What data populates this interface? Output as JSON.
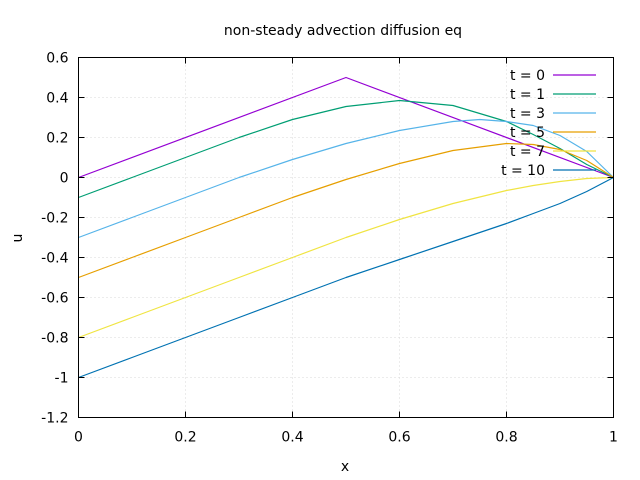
{
  "chart_data": {
    "type": "line",
    "title": "non-steady advection diffusion eq",
    "xlabel": "x",
    "ylabel": "u",
    "xlim": [
      0,
      1
    ],
    "ylim": [
      -1.2,
      0.6
    ],
    "xticks": [
      0,
      0.2,
      0.4,
      0.6,
      0.8,
      1
    ],
    "xtick_labels": [
      "0",
      "0.2",
      "0.4",
      "0.6",
      "0.8",
      "1"
    ],
    "yticks": [
      -1.2,
      -1,
      -0.8,
      -0.6,
      -0.4,
      -0.2,
      0,
      0.2,
      0.4,
      0.6
    ],
    "ytick_labels": [
      "-1.2",
      "-1",
      "-0.8",
      "-0.6",
      "-0.4",
      "-0.2",
      "0",
      "0.2",
      "0.4",
      "0.6"
    ],
    "grid": true,
    "legend_position": "top-right",
    "series": [
      {
        "name": "t = 0",
        "color": "#9400d3",
        "x": [
          0,
          0.5,
          1
        ],
        "y": [
          0,
          0.5,
          0
        ]
      },
      {
        "name": "t = 1",
        "color": "#009e73",
        "x": [
          0,
          0.1,
          0.2,
          0.3,
          0.4,
          0.5,
          0.6,
          0.7,
          0.8,
          0.85,
          0.9,
          0.95,
          1
        ],
        "y": [
          -0.1,
          0.0,
          0.1,
          0.2,
          0.29,
          0.355,
          0.385,
          0.36,
          0.28,
          0.215,
          0.145,
          0.065,
          0
        ]
      },
      {
        "name": "t = 3",
        "color": "#56b4e9",
        "x": [
          0,
          0.1,
          0.2,
          0.3,
          0.4,
          0.5,
          0.6,
          0.7,
          0.75,
          0.8,
          0.85,
          0.9,
          0.95,
          1
        ],
        "y": [
          -0.3,
          -0.2,
          -0.1,
          0.0,
          0.09,
          0.17,
          0.235,
          0.28,
          0.29,
          0.28,
          0.26,
          0.21,
          0.13,
          0
        ]
      },
      {
        "name": "t = 5",
        "color": "#e69f00",
        "x": [
          0,
          0.1,
          0.2,
          0.3,
          0.4,
          0.5,
          0.6,
          0.7,
          0.8,
          0.85,
          0.9,
          0.95,
          1
        ],
        "y": [
          -0.5,
          -0.4,
          -0.3,
          -0.2,
          -0.1,
          -0.01,
          0.07,
          0.135,
          0.17,
          0.165,
          0.14,
          0.085,
          0
        ]
      },
      {
        "name": "t = 7",
        "color": "#f0e442",
        "x": [
          0,
          0.1,
          0.2,
          0.3,
          0.4,
          0.5,
          0.6,
          0.7,
          0.8,
          0.85,
          0.9,
          0.95,
          1
        ],
        "y": [
          -0.8,
          -0.7,
          -0.6,
          -0.5,
          -0.4,
          -0.3,
          -0.21,
          -0.13,
          -0.065,
          -0.04,
          -0.02,
          -0.005,
          0
        ]
      },
      {
        "name": "t = 10",
        "color": "#0072b2",
        "x": [
          0,
          0.1,
          0.2,
          0.3,
          0.4,
          0.5,
          0.6,
          0.7,
          0.8,
          0.85,
          0.9,
          0.95,
          1
        ],
        "y": [
          -1.0,
          -0.9,
          -0.8,
          -0.7,
          -0.6,
          -0.5,
          -0.41,
          -0.32,
          -0.23,
          -0.18,
          -0.13,
          -0.07,
          0
        ]
      }
    ]
  }
}
